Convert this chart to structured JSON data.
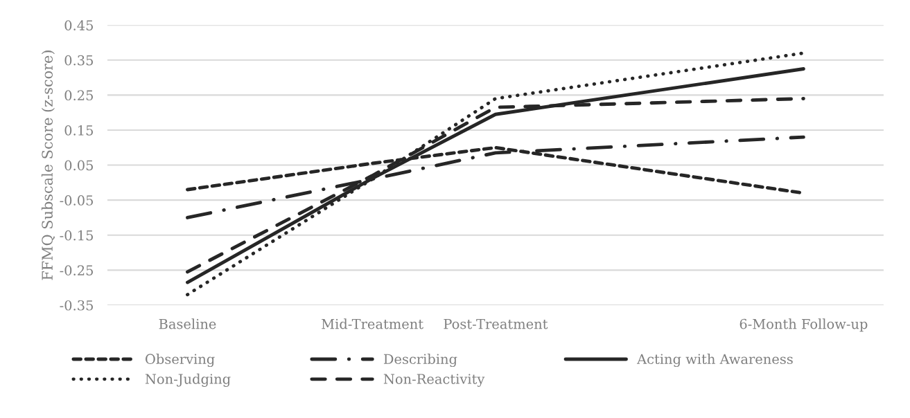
{
  "chart_data": {
    "type": "line",
    "ylabel": "FFMQ Subscale Score (z-score)",
    "categories": [
      "Baseline",
      null,
      null,
      null,
      null,
      null,
      "Mid-Treatment",
      null,
      null,
      null,
      "Post-Treatment",
      null,
      null,
      null,
      null,
      null,
      null,
      null,
      null,
      null,
      "6-Month Follow-up"
    ],
    "ylim": [
      -0.35,
      0.45
    ],
    "yticks": [
      0.45,
      0.35,
      0.25,
      0.15,
      0.05,
      -0.05,
      -0.15,
      -0.25,
      -0.35
    ],
    "grid": "y",
    "legend": "bottom",
    "marker": "none",
    "series": [
      {
        "name": "Observing",
        "color": "#262626",
        "line_style": "dashed",
        "values": [
          -0.02,
          null,
          null,
          null,
          null,
          null,
          0.055,
          null,
          null,
          null,
          0.1,
          null,
          null,
          null,
          null,
          null,
          null,
          null,
          null,
          null,
          -0.03
        ]
      },
      {
        "name": "Describing",
        "color": "#262626",
        "line_style": "dashdot",
        "values": [
          -0.1,
          null,
          null,
          null,
          null,
          null,
          0.01,
          null,
          null,
          null,
          0.085,
          null,
          null,
          null,
          null,
          null,
          null,
          null,
          null,
          null,
          0.13
        ]
      },
      {
        "name": "Acting with Awareness",
        "color": "#262626",
        "line_style": "solid",
        "values": [
          -0.285,
          null,
          null,
          null,
          null,
          null,
          0.012,
          null,
          null,
          null,
          0.195,
          null,
          null,
          null,
          null,
          null,
          null,
          null,
          null,
          null,
          0.325
        ]
      },
      {
        "name": "Non-Judging",
        "color": "#262626",
        "line_style": "dotted",
        "values": [
          -0.32,
          null,
          null,
          null,
          null,
          null,
          0.01,
          null,
          null,
          null,
          0.24,
          null,
          null,
          null,
          null,
          null,
          null,
          null,
          null,
          null,
          0.37
        ]
      },
      {
        "name": "Non-Reactivity",
        "color": "#262626",
        "line_style": "longdash",
        "values": [
          -0.255,
          null,
          null,
          null,
          null,
          null,
          0.02,
          null,
          null,
          null,
          0.215,
          null,
          null,
          null,
          null,
          null,
          null,
          null,
          null,
          null,
          0.24
        ]
      }
    ]
  }
}
